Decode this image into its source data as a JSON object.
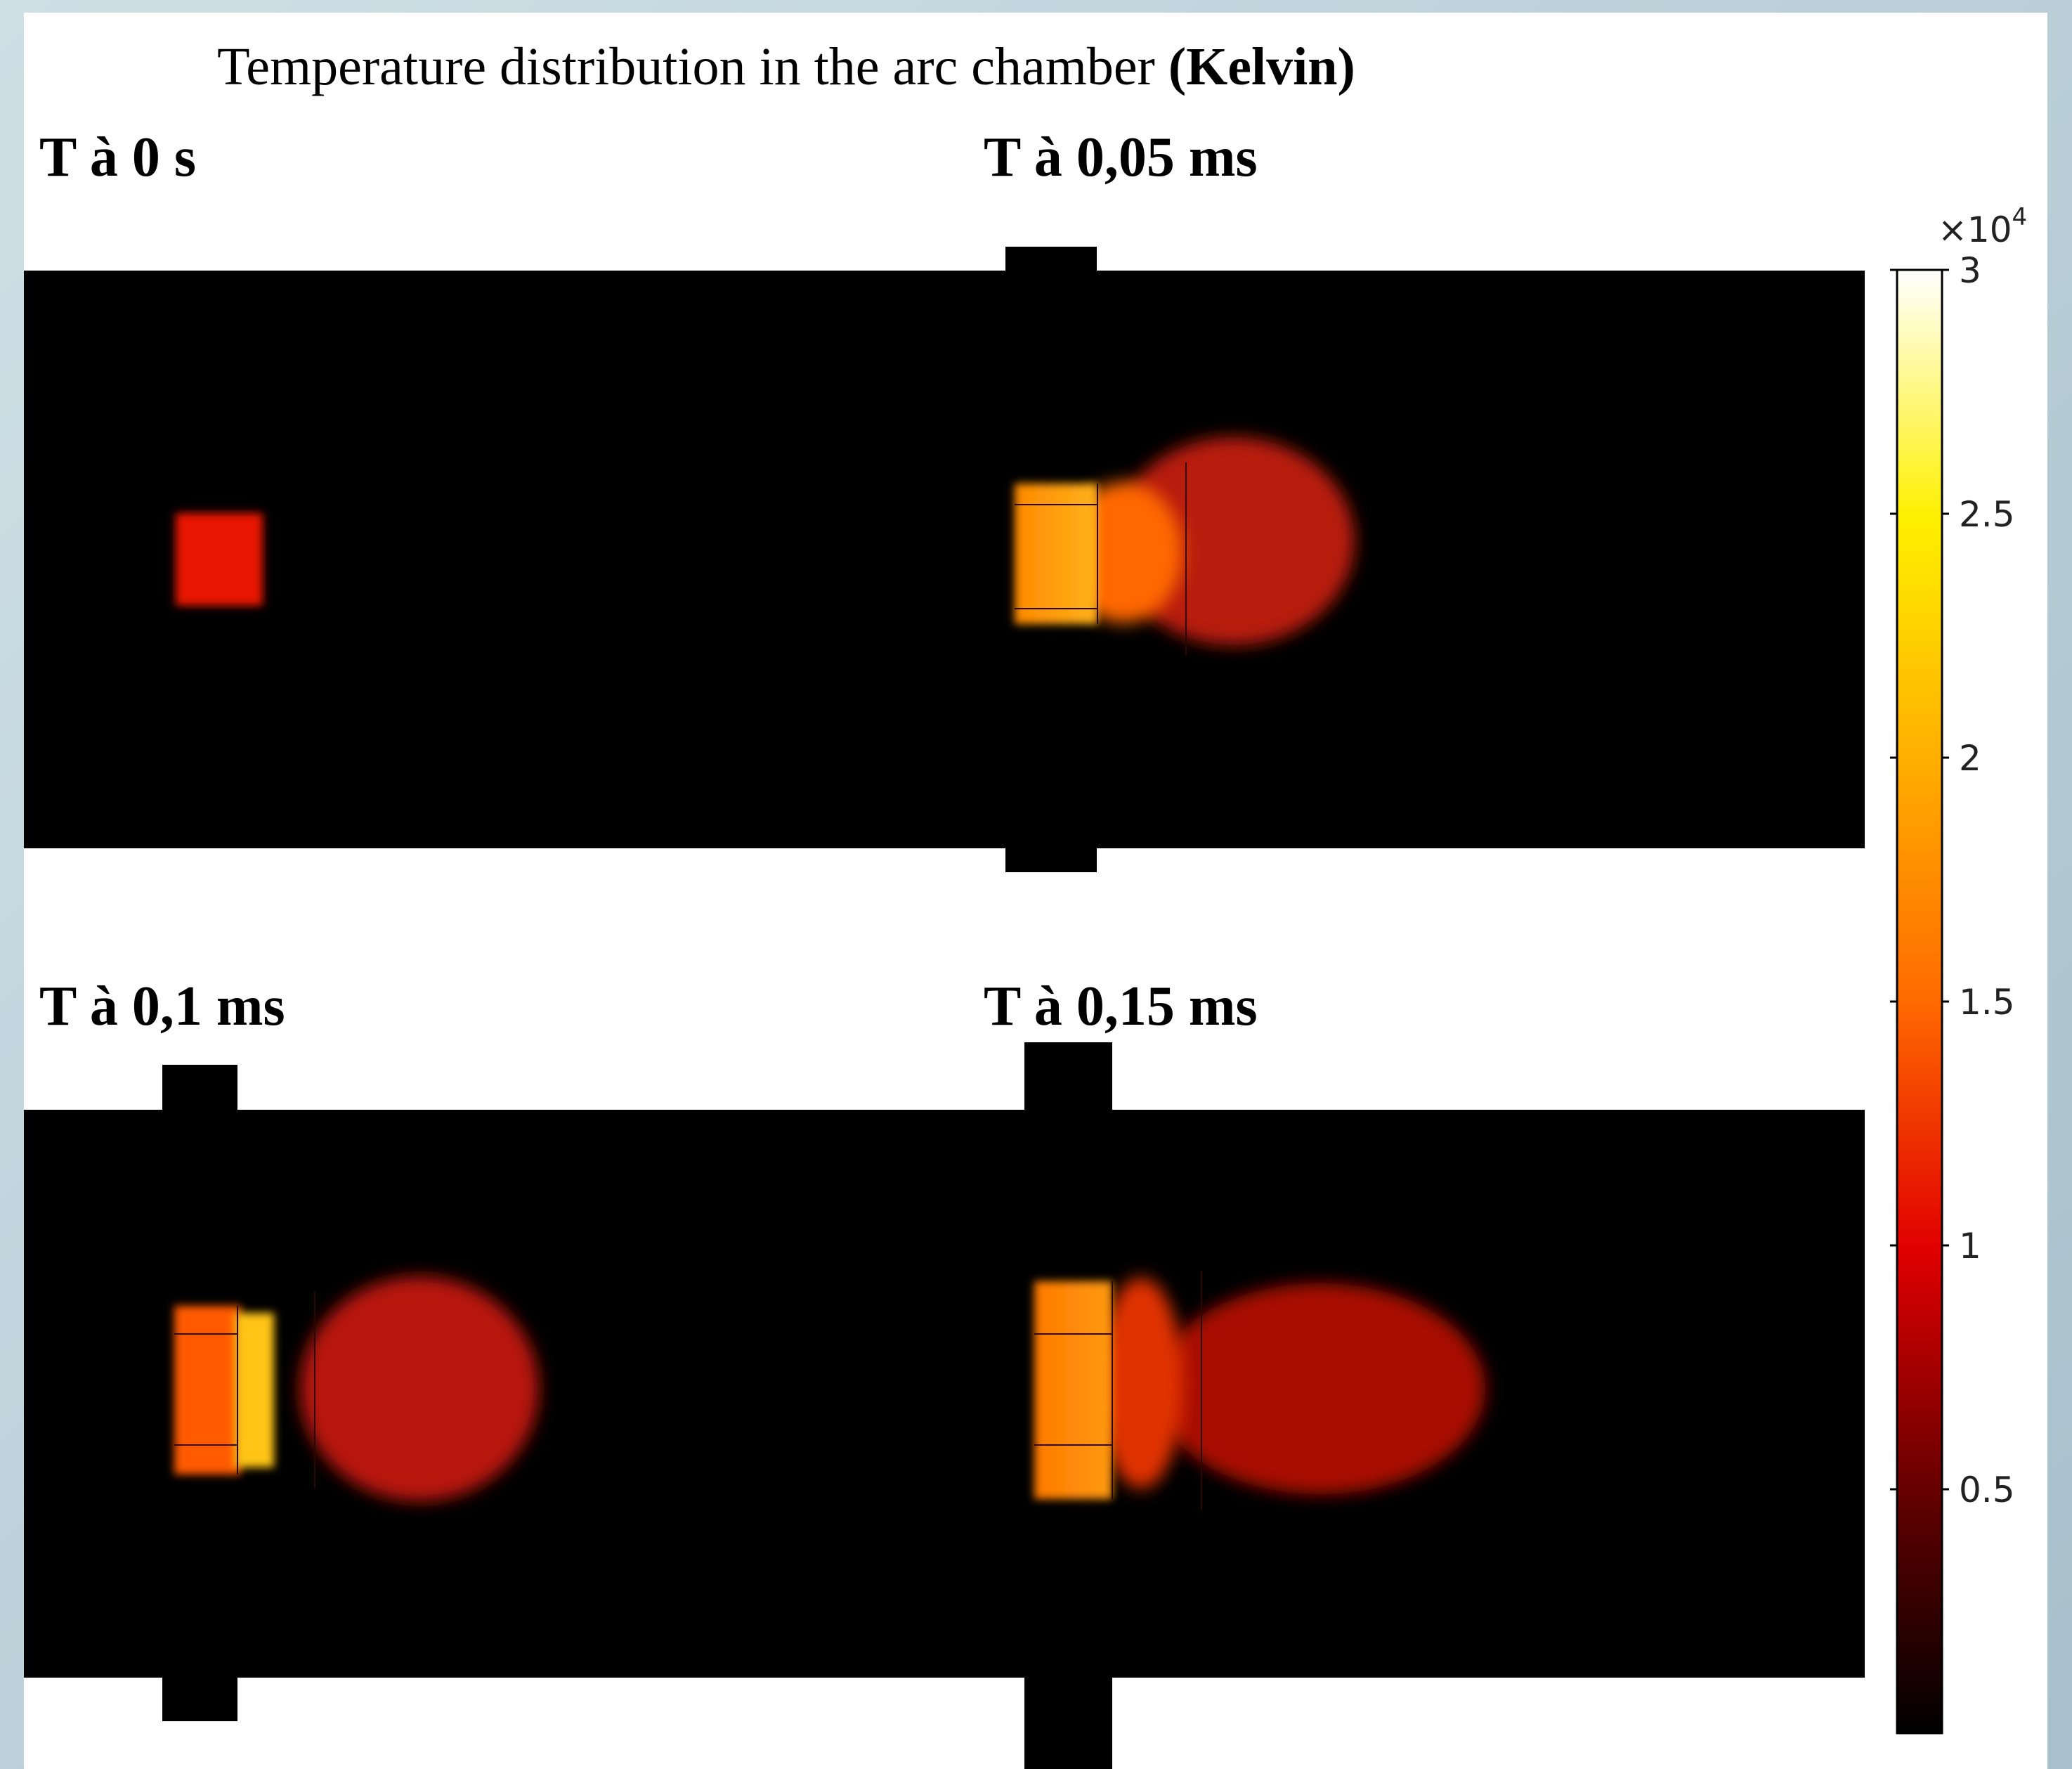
{
  "title": {
    "prefix": "Temperature distribution in the arc chamber ",
    "unit": "(Kelvin)"
  },
  "chart_data": {
    "type": "heatmap",
    "title": "Temperature distribution in the arc chamber (Kelvin)",
    "colormap": "heat",
    "colors": [
      "#000000",
      "#8b0000",
      "#ff1a00",
      "#ff8c00",
      "#ffe600",
      "#ffffff"
    ],
    "colorbar": {
      "multiplier": "×10",
      "exponent": "4",
      "range": [
        0,
        30000
      ],
      "ticks": [
        {
          "value": 0.5,
          "label": "0.5"
        },
        {
          "value": 1,
          "label": "1"
        },
        {
          "value": 1.5,
          "label": "1.5"
        },
        {
          "value": 2,
          "label": "2"
        },
        {
          "value": 2.5,
          "label": "2.5"
        },
        {
          "value": 3,
          "label": "3"
        }
      ]
    },
    "panels": [
      {
        "label": "T à 0 s"
      },
      {
        "label": "T à 0,05 ms"
      },
      {
        "label": "T à 0,1 ms"
      },
      {
        "label": "T à 0,15 ms"
      }
    ]
  }
}
